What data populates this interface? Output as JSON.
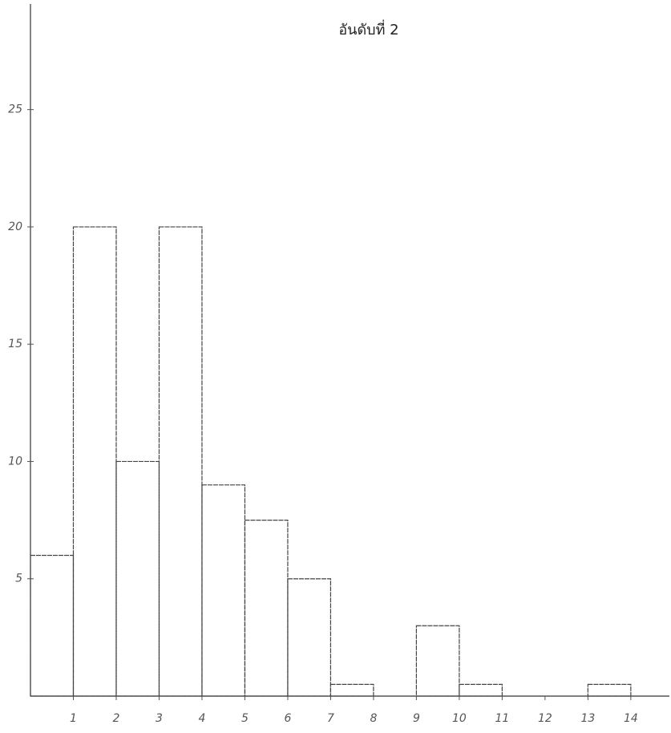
{
  "chart_data": {
    "type": "histogram",
    "title": "อันดับที่ 2",
    "bins": [
      0,
      1,
      2,
      3,
      4,
      5,
      6,
      7,
      8,
      9,
      10,
      11,
      12,
      13,
      14
    ],
    "values": [
      6,
      20,
      10,
      20,
      9,
      7.5,
      5,
      0.5,
      0,
      3,
      0.5,
      0,
      0,
      0.5
    ],
    "color": "#444444",
    "xlim": [
      0,
      14.9
    ],
    "xticks": [
      1,
      2,
      3,
      4,
      5,
      6,
      7,
      8,
      9,
      10,
      11,
      12,
      13,
      14
    ],
    "ylim": [
      0,
      29.5
    ],
    "yticks": [
      5,
      10,
      15,
      20,
      25
    ],
    "grid": false
  }
}
